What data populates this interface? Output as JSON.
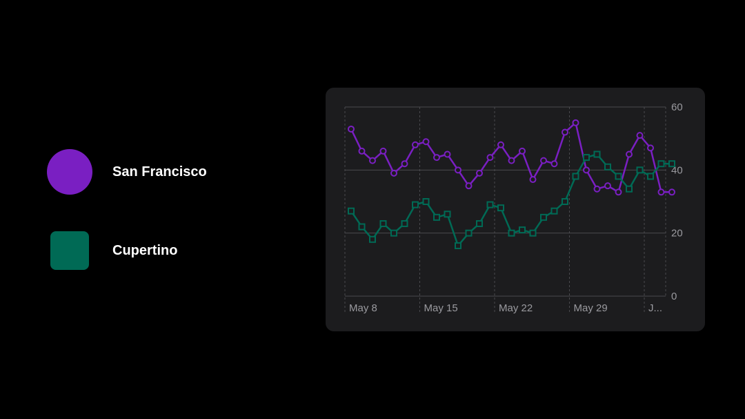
{
  "legend": {
    "items": [
      {
        "name": "San Francisco",
        "shape": "circle",
        "color": "#7a1fc2"
      },
      {
        "name": "Cupertino",
        "shape": "square",
        "color": "#006a55"
      }
    ]
  },
  "chart_data": {
    "type": "line",
    "x_tick_labels": [
      "May 8",
      "May 15",
      "May 22",
      "May 29",
      "J..."
    ],
    "y_ticks": [
      0,
      20,
      40,
      60
    ],
    "ylim": [
      0,
      60
    ],
    "grid": true,
    "x": [
      "May 8",
      "May 9",
      "May 10",
      "May 11",
      "May 12",
      "May 13",
      "May 14",
      "May 15",
      "May 16",
      "May 17",
      "May 18",
      "May 19",
      "May 20",
      "May 21",
      "May 22",
      "May 23",
      "May 24",
      "May 25",
      "May 26",
      "May 27",
      "May 28",
      "May 29",
      "May 30",
      "May 31",
      "Jun 1",
      "Jun 2",
      "Jun 3",
      "Jun 4",
      "Jun 5",
      "Jun 6",
      "Jun 7"
    ],
    "series": [
      {
        "name": "San Francisco",
        "marker": "circle",
        "color": "#7a1fc2",
        "values": [
          53,
          46,
          43,
          46,
          39,
          42,
          48,
          49,
          44,
          45,
          40,
          35,
          39,
          44,
          48,
          43,
          46,
          37,
          43,
          42,
          52,
          55,
          40,
          34,
          35,
          33,
          45,
          51,
          47,
          33,
          33
        ]
      },
      {
        "name": "Cupertino",
        "marker": "square",
        "color": "#006a55",
        "values": [
          27,
          22,
          18,
          23,
          20,
          23,
          29,
          30,
          25,
          26,
          16,
          20,
          23,
          29,
          28,
          20,
          21,
          20,
          25,
          27,
          30,
          38,
          44,
          45,
          41,
          38,
          34,
          40,
          38,
          42,
          42
        ]
      }
    ]
  }
}
